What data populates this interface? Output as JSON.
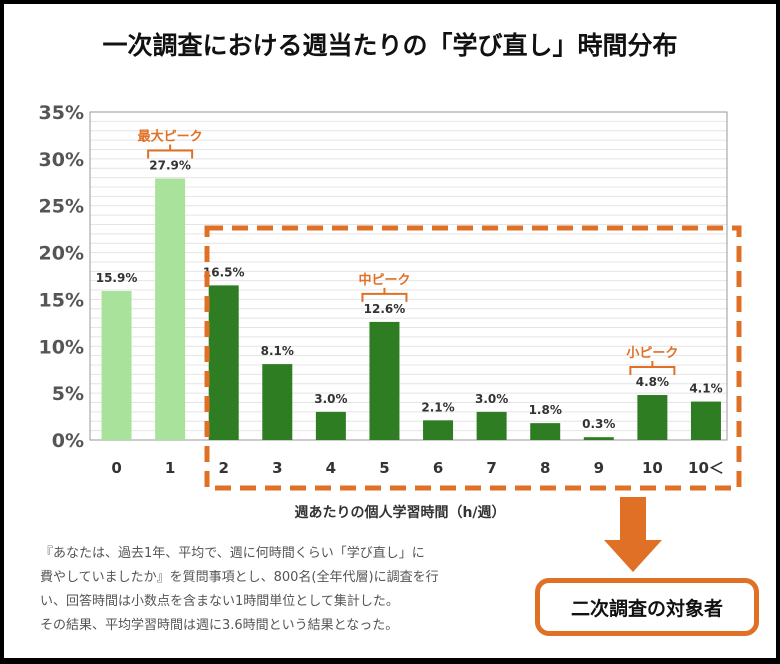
{
  "title": "一次調査における週当たりの「学び直し」時間分布",
  "chart_data": {
    "type": "bar",
    "categories": [
      "0",
      "1",
      "2",
      "3",
      "4",
      "5",
      "6",
      "7",
      "8",
      "9",
      "10",
      "10＜"
    ],
    "values": [
      15.9,
      27.9,
      16.5,
      8.1,
      3.0,
      12.6,
      2.1,
      3.0,
      1.8,
      0.3,
      4.8,
      4.1
    ],
    "data_labels": [
      "15.9%",
      "27.9%",
      "16.5%",
      "8.1%",
      "3.0%",
      "12.6%",
      "2.1%",
      "3.0%",
      "1.8%",
      "0.3%",
      "4.8%",
      "4.1%"
    ],
    "xlabel": "週あたりの個人学習時間（h/週）",
    "ylabel": "",
    "ylim": [
      0,
      35
    ],
    "yticks": [
      "0%",
      "5%",
      "10%",
      "15%",
      "20%",
      "25%",
      "30%",
      "35%"
    ],
    "grid": true,
    "colors": {
      "light": "#a9e29a",
      "dark": "#2e7d22",
      "accent": "#e07026"
    },
    "annotations": [
      {
        "text": "最大ピーク",
        "category": "1"
      },
      {
        "text": "中ピーク",
        "category": "5"
      },
      {
        "text": "小ピーク",
        "category": "10"
      }
    ]
  },
  "note_lines": [
    "『あなたは、過去1年、平均で、週に何時間くらい「学び直し」に",
    "費やしていましたか』を質問事項とし、800名(全年代層)に調査を行",
    "い、回答時間は小数点を含まない1時間単位として集計した。",
    "その結果、平均学習時間は週に3.6時間という結果となった。"
  ],
  "target_label": "二次調査の対象者"
}
